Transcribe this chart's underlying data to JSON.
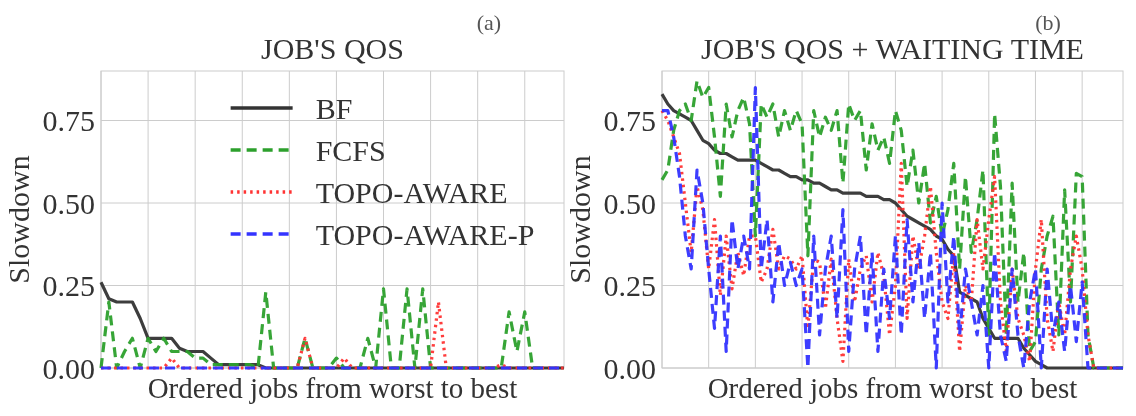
{
  "chart_data": [
    {
      "type": "line",
      "title": "JOB'S QOS",
      "xlabel": "Ordered jobs from worst to best",
      "ylabel": "Slowdown",
      "annotations": [
        "(a)"
      ],
      "legend": "top",
      "grid": true,
      "ylim": [
        0,
        0.9
      ],
      "yticks": [
        {
          "value": 0,
          "label": "0.00"
        },
        {
          "value": 0.25,
          "label": "0.25"
        },
        {
          "value": 0.5,
          "label": "0.50"
        },
        {
          "value": 0.75,
          "label": "0.75"
        }
      ],
      "categories": [
        null,
        null,
        null,
        null,
        null,
        null,
        null,
        null,
        null,
        null,
        null,
        null,
        null,
        null,
        null,
        null,
        null,
        null,
        null,
        null,
        null,
        null,
        null,
        null,
        null,
        null,
        null,
        null,
        null,
        null,
        null,
        null,
        null,
        null,
        null,
        null,
        null,
        null,
        null,
        null,
        null,
        null,
        null,
        null,
        null,
        null,
        null,
        null,
        null,
        null,
        null,
        null,
        null,
        null,
        null,
        null,
        null,
        null,
        null,
        null
      ],
      "series": [
        {
          "name": "BF",
          "color": "#333333",
          "line_style": "solid",
          "values": [
            0.26,
            0.21,
            0.2,
            0.2,
            0.2,
            0.15,
            0.09,
            0.09,
            0.09,
            0.09,
            0.06,
            0.05,
            0.05,
            0.05,
            0.03,
            0.01,
            0.01,
            0.01,
            0.01,
            0.01,
            0.01,
            0,
            0,
            0,
            0,
            0,
            0,
            0,
            0,
            0,
            0,
            0,
            0,
            0,
            0,
            0,
            0,
            0,
            0,
            0,
            0,
            0,
            0,
            0,
            0,
            0,
            0,
            0,
            0,
            0,
            0,
            0,
            0,
            0,
            0,
            0,
            0,
            0,
            0,
            0
          ]
        },
        {
          "name": "FCFS",
          "color": "#2ca02c",
          "line_style": "dashed",
          "values": [
            0,
            0.2,
            0,
            0.05,
            0.09,
            0,
            0.09,
            0.05,
            0.09,
            0.05,
            0.05,
            0.05,
            0.03,
            0.03,
            0.01,
            0.01,
            0.01,
            0.01,
            0.01,
            0.01,
            0,
            0.23,
            0,
            0,
            0,
            0,
            0.09,
            0,
            0,
            0,
            0.03,
            0,
            0,
            0,
            0.09,
            0,
            0.24,
            0,
            0,
            0.24,
            0,
            0.24,
            0,
            0,
            0,
            0,
            0,
            0,
            0,
            0,
            0,
            0,
            0.17,
            0.05,
            0.17,
            0,
            0,
            null,
            null,
            null
          ]
        },
        {
          "name": "TOPO-AWARE",
          "color": "#ff3333",
          "line_style": "dotted",
          "values": [
            0,
            0,
            0,
            0,
            0,
            0,
            0,
            0,
            0,
            0.03,
            0,
            0,
            0,
            0,
            0,
            0,
            0,
            0,
            0,
            0,
            0,
            0,
            0,
            0,
            0,
            0,
            0.09,
            0,
            0,
            0,
            0,
            0.03,
            0,
            0,
            0,
            0,
            0,
            0,
            0,
            0,
            0,
            0,
            0,
            0.2,
            0,
            0,
            0,
            0,
            0,
            0,
            0,
            0.01,
            0,
            0,
            0,
            0,
            0,
            0,
            0,
            0
          ]
        },
        {
          "name": "TOPO-AWARE-P",
          "color": "#3333ff",
          "line_style": "dashed",
          "values": [
            0,
            0,
            0,
            0,
            0,
            0,
            0,
            0,
            0,
            0,
            0,
            0,
            0,
            0,
            0,
            0,
            0,
            0,
            0,
            0,
            0,
            0,
            0,
            0,
            0,
            0,
            0,
            0,
            0,
            0,
            0,
            0,
            0,
            0,
            0,
            0,
            0,
            0,
            0,
            0,
            0,
            0,
            0,
            0,
            0,
            0,
            0,
            0,
            0,
            0,
            0,
            0,
            0,
            0,
            0,
            0,
            0,
            0,
            0,
            0
          ]
        }
      ]
    },
    {
      "type": "line",
      "title": "JOB'S QOS + WAITING TIME",
      "xlabel": "Ordered jobs from worst to best",
      "ylabel": "Slowdown",
      "annotations": [
        "(b)"
      ],
      "grid": true,
      "ylim": [
        0,
        0.9
      ],
      "yticks": [
        {
          "value": 0,
          "label": "0.00"
        },
        {
          "value": 0.25,
          "label": "0.25"
        },
        {
          "value": 0.5,
          "label": "0.50"
        },
        {
          "value": 0.75,
          "label": "0.75"
        }
      ],
      "categories": [
        null,
        null,
        null,
        null,
        null,
        null,
        null,
        null,
        null,
        null,
        null,
        null,
        null,
        null,
        null,
        null,
        null,
        null,
        null,
        null,
        null,
        null,
        null,
        null,
        null,
        null,
        null,
        null,
        null,
        null,
        null,
        null,
        null,
        null,
        null,
        null,
        null,
        null,
        null,
        null,
        null,
        null,
        null,
        null,
        null,
        null,
        null,
        null,
        null,
        null,
        null,
        null,
        null,
        null,
        null,
        null,
        null,
        null,
        null,
        null,
        null,
        null,
        null,
        null,
        null,
        null,
        null,
        null,
        null,
        null,
        null,
        null,
        null,
        null,
        null,
        null,
        null,
        null,
        null,
        null
      ],
      "series": [
        {
          "color": "#333333",
          "line_style": "solid",
          "values": [
            0.83,
            0.8,
            0.78,
            0.77,
            0.76,
            0.75,
            0.72,
            0.69,
            0.68,
            0.66,
            0.65,
            0.65,
            0.64,
            0.63,
            0.63,
            0.63,
            0.63,
            0.62,
            0.61,
            0.6,
            0.6,
            0.59,
            0.58,
            0.58,
            0.57,
            0.57,
            0.56,
            0.56,
            0.55,
            0.54,
            0.54,
            0.53,
            0.53,
            0.53,
            0.53,
            0.52,
            0.52,
            0.52,
            0.51,
            0.51,
            0.5,
            0.48,
            0.46,
            0.45,
            0.44,
            0.43,
            0.42,
            0.4,
            0.39,
            0.36,
            0.34,
            0.23,
            0.22,
            0.21,
            0.2,
            0.15,
            0.12,
            0.09,
            0.09,
            0.09,
            0.09,
            0.09,
            0.06,
            0.04,
            0.02,
            0.01,
            0,
            0,
            0,
            0,
            0,
            0,
            0,
            0,
            0,
            0,
            0,
            0,
            0,
            0
          ]
        },
        {
          "color": "#2ca02c",
          "line_style": "dashed",
          "values": [
            0.57,
            0.6,
            0.72,
            0.78,
            0.8,
            0.75,
            0.87,
            0.82,
            0.85,
            0.7,
            0.52,
            0.8,
            0.7,
            0.78,
            0.82,
            0.74,
            0.4,
            0.8,
            0.76,
            0.8,
            0.7,
            0.78,
            0.72,
            0.78,
            0.74,
            0.34,
            0.78,
            0.7,
            0.76,
            0.72,
            0.78,
            0.56,
            0.8,
            0.75,
            0.78,
            0.6,
            0.74,
            0.66,
            0.7,
            0.62,
            0.78,
            0.72,
            0.55,
            0.66,
            0.5,
            0.62,
            0.44,
            0.52,
            0.4,
            0.48,
            0.62,
            0.3,
            0.58,
            0.35,
            0.45,
            0.6,
            0.1,
            0.77,
            0.55,
            0.1,
            0.56,
            0.2,
            0.35,
            0.05,
            0.08,
            0.3,
            0.4,
            0.46,
            0.1,
            0.54,
            0.2,
            0.59,
            0.58,
            0.1,
            0,
            0,
            0,
            0,
            0,
            0
          ]
        },
        {
          "color": "#ff3333",
          "line_style": "dotted",
          "values": [
            0.78,
            0.75,
            0.7,
            0.65,
            0.5,
            0.35,
            0.55,
            0.48,
            0.3,
            0.45,
            0.22,
            0.4,
            0.24,
            0.35,
            0.28,
            0.4,
            0.4,
            0.26,
            0.3,
            0.42,
            0.3,
            0.34,
            0.33,
            0.3,
            0.34,
            0.12,
            0.33,
            0.32,
            0.18,
            0.33,
            0.15,
            0.02,
            0.33,
            0.2,
            0.3,
            0.34,
            0.2,
            0.35,
            0.28,
            0.1,
            0.25,
            0.62,
            0.15,
            0.4,
            0.3,
            0.4,
            0.55,
            0.35,
            0.2,
            0.15,
            0.35,
            0.05,
            0.25,
            0.2,
            0.45,
            0.3,
            0.45,
            0.58,
            0.2,
            0.05,
            0.3,
            0.15,
            0.1,
            0.02,
            0.3,
            0.45,
            0.15,
            0.05,
            0.2,
            0.1,
            0.3,
            0.4,
            0.3,
            0.1,
            0,
            0,
            0,
            0,
            0,
            0
          ]
        },
        {
          "color": "#3333ff",
          "line_style": "dashed",
          "values": [
            0.78,
            0.78,
            0.7,
            0.58,
            0.4,
            0.3,
            0.6,
            0.5,
            0.3,
            0.12,
            0.4,
            0.05,
            0.45,
            0.3,
            0.4,
            0.3,
            0.85,
            0.3,
            0.45,
            0.2,
            0.38,
            0.25,
            0.32,
            0.25,
            0.3,
            0,
            0.4,
            0.1,
            0.3,
            0.4,
            0.15,
            0.48,
            0.05,
            0.3,
            0.4,
            0.1,
            0.35,
            0.05,
            0.3,
            0.15,
            0.4,
            0.1,
            0.45,
            0.2,
            0.38,
            0.15,
            0.35,
            0,
            0.5,
            0.2,
            0.4,
            0.1,
            0.3,
            0.2,
            0.1,
            0.25,
            0,
            0.35,
            0.1,
            0.02,
            0.3,
            0.1,
            0,
            0.2,
            0.3,
            0,
            0.3,
            0.1,
            0.2,
            0.05,
            0.25,
            0.08,
            0.26,
            0,
            0,
            0,
            0,
            0,
            0,
            0
          ]
        }
      ]
    }
  ]
}
